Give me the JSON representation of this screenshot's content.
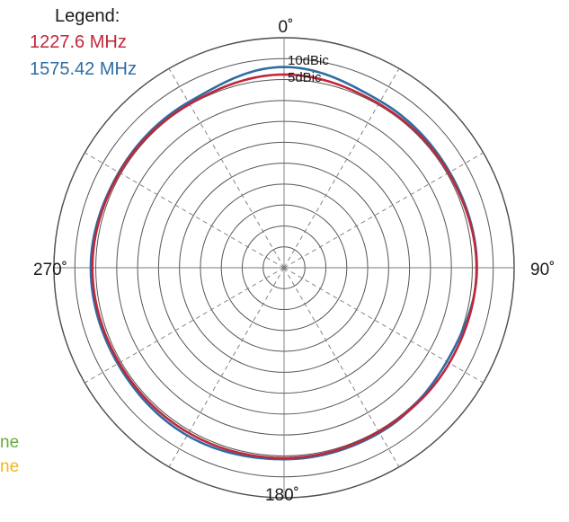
{
  "chart_data": {
    "type": "polar",
    "title": "",
    "legend": {
      "title": "Legend:",
      "placement": "top-left"
    },
    "angle_ticks": [
      {
        "angle": 0,
        "label": "0˚"
      },
      {
        "angle": 90,
        "label": "90˚"
      },
      {
        "angle": 180,
        "label": "180˚"
      },
      {
        "angle": 270,
        "label": "270˚"
      }
    ],
    "radial_ticks": [
      {
        "value": 10,
        "label": "10dBic"
      },
      {
        "value": 5,
        "label": "5dBic"
      }
    ],
    "rings": [
      -35,
      -30,
      -25,
      -20,
      -15,
      -10,
      -5,
      0,
      5,
      10,
      15
    ],
    "r_range": [
      -40,
      15
    ],
    "spoke_step_deg": 30,
    "grid": true,
    "series": [
      {
        "name": "1227.6 MHz",
        "color": "#c0273a",
        "angles": [
          0,
          30,
          60,
          90,
          120,
          150,
          180,
          210,
          240,
          270,
          300,
          330,
          360
        ],
        "values": [
          6.2,
          5.3,
          5.4,
          6.0,
          5.6,
          5.3,
          5.5,
          5.6,
          5.5,
          5.8,
          5.4,
          5.2,
          6.2
        ]
      },
      {
        "name": "1575.42 MHz",
        "color": "#2e6da4",
        "angles": [
          0,
          30,
          60,
          90,
          120,
          150,
          180,
          210,
          240,
          270,
          300,
          330,
          360
        ],
        "values": [
          8.0,
          6.0,
          5.7,
          6.1,
          4.9,
          5.6,
          5.8,
          6.3,
          5.9,
          6.2,
          5.6,
          5.7,
          8.0
        ]
      }
    ],
    "cut_off_labels": [
      {
        "text": "ne",
        "color": "#6aab3c"
      },
      {
        "text": "ne",
        "color": "#f2b817"
      }
    ]
  }
}
